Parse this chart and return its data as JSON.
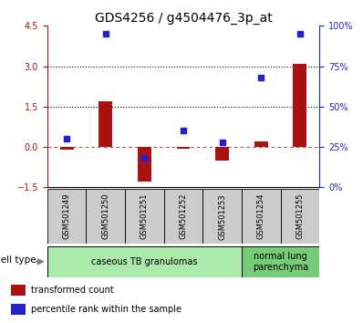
{
  "title": "GDS4256 / g4504476_3p_at",
  "samples": [
    "GSM501249",
    "GSM501250",
    "GSM501251",
    "GSM501252",
    "GSM501253",
    "GSM501254",
    "GSM501255"
  ],
  "transformed_count": [
    -0.1,
    1.7,
    -1.3,
    -0.05,
    -0.5,
    0.2,
    3.1
  ],
  "percentile_rank": [
    30,
    95,
    18,
    35,
    28,
    68,
    95
  ],
  "left_ylim": [
    -1.5,
    4.5
  ],
  "right_ylim": [
    0,
    100
  ],
  "left_yticks": [
    -1.5,
    0,
    1.5,
    3,
    4.5
  ],
  "right_yticks": [
    0,
    25,
    50,
    75,
    100
  ],
  "right_yticklabels": [
    "0%",
    "25%",
    "50%",
    "75%",
    "100%"
  ],
  "hlines": [
    1.5,
    3.0
  ],
  "bar_color": "#aa1111",
  "scatter_color": "#2222cc",
  "zero_line_color": "#cc4444",
  "gray_box_color": "#cccccc",
  "cell_type_groups": [
    {
      "label": "caseous TB granulomas",
      "samples": [
        0,
        1,
        2,
        3,
        4
      ],
      "color": "#aaeaaa"
    },
    {
      "label": "normal lung\nparenchyma",
      "samples": [
        5,
        6
      ],
      "color": "#77cc77"
    }
  ],
  "cell_type_label": "cell type",
  "legend_items": [
    {
      "label": "transformed count",
      "color": "#aa1111"
    },
    {
      "label": "percentile rank within the sample",
      "color": "#2222cc"
    }
  ],
  "bar_width": 0.35,
  "title_fontsize": 10,
  "tick_fontsize": 7,
  "sample_fontsize": 6,
  "celltype_fontsize": 7,
  "legend_fontsize": 7,
  "background_color": "#ffffff"
}
